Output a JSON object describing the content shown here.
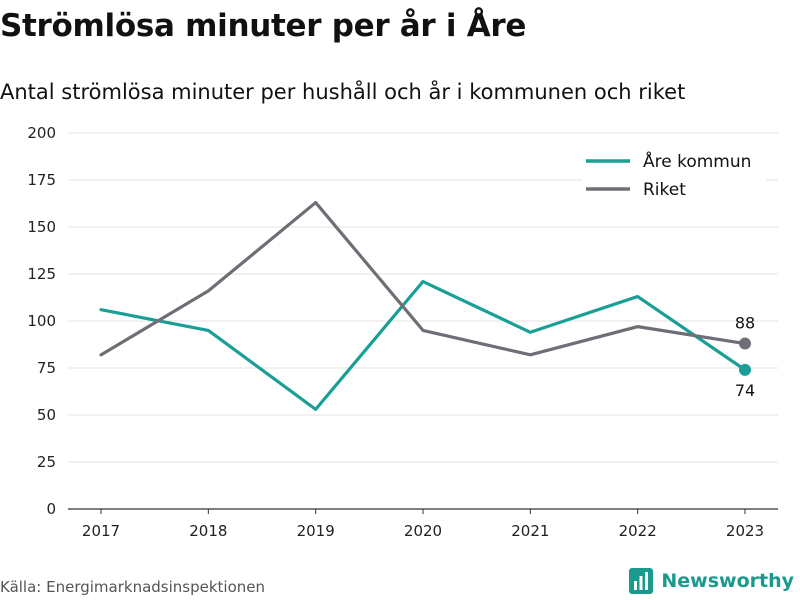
{
  "header": {
    "title": "Strömlösa minuter per år i Åre",
    "subtitle": "Antal strömlösa minuter per hushåll och år i kommunen och riket"
  },
  "footer": {
    "source": "Källa: Energimarknadsinspektionen",
    "brand": "Newsworthy",
    "brand_icon": "bar-chart-logo-icon",
    "brand_color": "#1a9a8c"
  },
  "chart_data": {
    "type": "line",
    "x": [
      "2017",
      "2018",
      "2019",
      "2020",
      "2021",
      "2022",
      "2023"
    ],
    "ylim": [
      0,
      200
    ],
    "yticks": [
      0,
      25,
      50,
      75,
      100,
      125,
      150,
      175,
      200
    ],
    "grid": true,
    "legend_position": "top-right",
    "series": [
      {
        "name": "Åre kommun",
        "color": "#1a9f97",
        "values": [
          106,
          95,
          53,
          121,
          94,
          113,
          74
        ],
        "end_label": "74"
      },
      {
        "name": "Riket",
        "color": "#6f6e76",
        "values": [
          82,
          116,
          163,
          95,
          82,
          97,
          88
        ],
        "end_label": "88"
      }
    ]
  }
}
